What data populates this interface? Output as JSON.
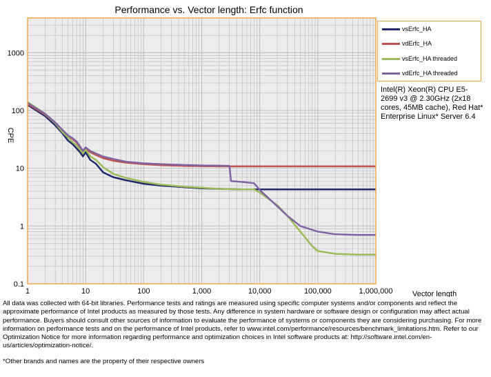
{
  "chart_data": {
    "type": "line",
    "title": "Performance vs. Vector length: Erfc function",
    "xlabel": "Vector length",
    "ylabel": "CPE",
    "xscale": "log",
    "yscale": "log",
    "xlim": [
      1,
      1000000
    ],
    "ylim": [
      0.1,
      4000
    ],
    "x_ticks": [
      {
        "value": 1,
        "label": "1"
      },
      {
        "value": 10,
        "label": "10"
      },
      {
        "value": 100,
        "label": "100"
      },
      {
        "value": 1000,
        "label": "1,000"
      },
      {
        "value": 10000,
        "label": "10,000"
      },
      {
        "value": 100000,
        "label": "100,000"
      },
      {
        "value": 1000000,
        "label": "1,000,000"
      }
    ],
    "y_ticks": [
      {
        "value": 0.1,
        "label": "0.1"
      },
      {
        "value": 1,
        "label": "1"
      },
      {
        "value": 10,
        "label": "10"
      },
      {
        "value": 100,
        "label": "100"
      },
      {
        "value": 1000,
        "label": "1000"
      }
    ],
    "grid": true,
    "legend_position": "top-right",
    "series": [
      {
        "name": "vsErfc_HA",
        "color": "#1f2a6e",
        "x": [
          1,
          2,
          3,
          4,
          5,
          6,
          7,
          8,
          9,
          10,
          12,
          15,
          20,
          30,
          50,
          100,
          200,
          500,
          1000,
          2000,
          5000,
          10000,
          100000,
          1000000
        ],
        "y": [
          125,
          80,
          55,
          40,
          30,
          26,
          22,
          19,
          16,
          19,
          14,
          12,
          8.5,
          7,
          6.2,
          5.4,
          5.0,
          4.7,
          4.5,
          4.4,
          4.3,
          4.3,
          4.3,
          4.3
        ]
      },
      {
        "name": "vdErfc_HA",
        "color": "#c0504d",
        "x": [
          1,
          2,
          3,
          4,
          5,
          6,
          7,
          8,
          9,
          10,
          12,
          15,
          20,
          30,
          50,
          100,
          200,
          500,
          1000,
          2000,
          5000,
          10000,
          100000,
          1000000
        ],
        "y": [
          130,
          85,
          60,
          45,
          36,
          32,
          28,
          23,
          20,
          22,
          19,
          17,
          15,
          13.5,
          12.5,
          11.8,
          11.3,
          11.0,
          10.9,
          10.8,
          10.8,
          10.8,
          10.8,
          10.8
        ]
      },
      {
        "name": "vsErfc_HA threaded",
        "color": "#9bbb59",
        "x": [
          1,
          2,
          3,
          4,
          5,
          6,
          7,
          8,
          9,
          10,
          12,
          15,
          20,
          30,
          50,
          100,
          200,
          500,
          1000,
          2000,
          5000,
          8000,
          10000,
          20000,
          30000,
          50000,
          80000,
          100000,
          200000,
          500000,
          1000000
        ],
        "y": [
          140,
          88,
          60,
          42,
          34,
          28,
          25,
          21,
          18,
          21,
          16,
          14,
          10.5,
          8,
          6.8,
          5.8,
          5.2,
          4.8,
          4.6,
          4.4,
          4.3,
          4.3,
          3.8,
          2.3,
          1.5,
          0.8,
          0.45,
          0.37,
          0.33,
          0.32,
          0.32
        ]
      },
      {
        "name": "vdErfc_HA threaded",
        "color": "#8064a2",
        "x": [
          1,
          2,
          3,
          4,
          5,
          6,
          7,
          8,
          9,
          10,
          12,
          15,
          20,
          30,
          50,
          100,
          200,
          500,
          1000,
          2000,
          3000,
          3200,
          5000,
          8000,
          10000,
          20000,
          30000,
          50000,
          100000,
          200000,
          500000,
          1000000
        ],
        "y": [
          135,
          88,
          62,
          46,
          37,
          33,
          29,
          24,
          20,
          23,
          20,
          18,
          16,
          14.5,
          13,
          12.2,
          11.8,
          11.4,
          11.2,
          11.1,
          11.0,
          6.0,
          5.8,
          5.5,
          4.2,
          2.2,
          1.5,
          1.0,
          0.8,
          0.72,
          0.7,
          0.7
        ]
      }
    ]
  },
  "cpu_note": "Intel(R) Xeon(R) CPU E5-2699 v3 @ 2.30GHz (2x18 cores, 45MB cache), Red Hat* Enterprise Linux* Server 6.4",
  "disclaimer": "All data was collected with 64-bit libraries. Performance tests and ratings are measured using specific computer systems and/or components and reflect the approximate performance of Intel products as measured by those tests. Any difference in system hardware or software design or configuration may affect actual performance. Buyers should consult other sources of information to evaluate the performance of systems or components they are considering purchasing. For more information on performance tests and on the performance of Intel products, refer to www.intel.com/performance/resources/benchmark_limitations.htm. Refer to our Optimization Notice for more information regarding performance and optimization choices in Intel software products at: http://software.intel.com/en-us/articles/optimization-notice/.",
  "footnote": "*Other brands and names are the property of their respective owners",
  "colors": {
    "frame": "#f2a64a",
    "plot_background": "#ececec",
    "grid": "#b8b8b8"
  }
}
